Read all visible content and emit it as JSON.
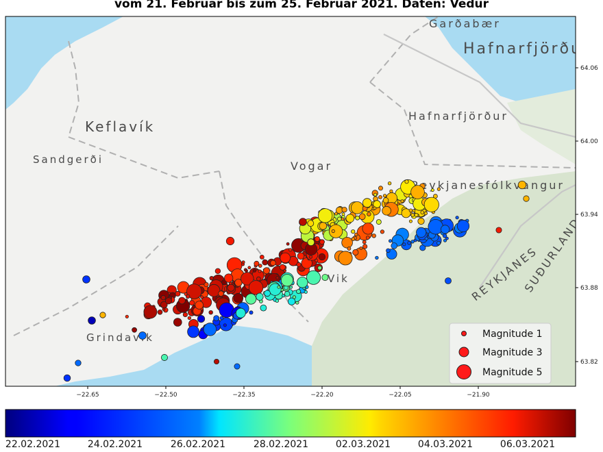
{
  "title": "vom 21. Februar bis zum 25. Februar 2021. Daten: Vedur",
  "places": [
    {
      "name": "Garðabær",
      "size": 16
    },
    {
      "name": "Hafnarfjörður",
      "size": 22
    },
    {
      "name": "Hafnarfjörður",
      "size": 16
    },
    {
      "name": "Keflavík",
      "size": 20
    },
    {
      "name": "Sandgerði",
      "size": 15
    },
    {
      "name": "Vogar",
      "size": 16
    },
    {
      "name": "Reykjanesfólkvangur",
      "size": 16
    },
    {
      "name": "Grindavík",
      "size": 15
    },
    {
      "name": "REYKJANES",
      "size": 16
    },
    {
      "name": "SUÐURLAND",
      "size": 16
    },
    {
      "name": "Vik",
      "size": 15
    }
  ],
  "x_ticks": [
    "−22.65",
    "−22.50",
    "−22.35",
    "−22.20",
    "−22.05",
    "−21.90"
  ],
  "y_ticks": [
    "64.06",
    "64.00",
    "63.94",
    "63.88",
    "63.82"
  ],
  "legend": [
    {
      "label": "Magnitude 1"
    },
    {
      "label": "Magnitude 3"
    },
    {
      "label": "Magnitude 5"
    }
  ],
  "colorbar": {
    "labels": [
      "22.02.2021",
      "24.02.2021",
      "26.02.2021",
      "28.02.2021",
      "02.03.2021",
      "04.03.2021",
      "06.03.2021"
    ]
  },
  "colors": {
    "sea": "#a9dbf2",
    "land": "#f2f2f0",
    "park": "#d8e4cf",
    "marker_edge": "#222222",
    "legend_marker": "#ff1a1a"
  }
}
